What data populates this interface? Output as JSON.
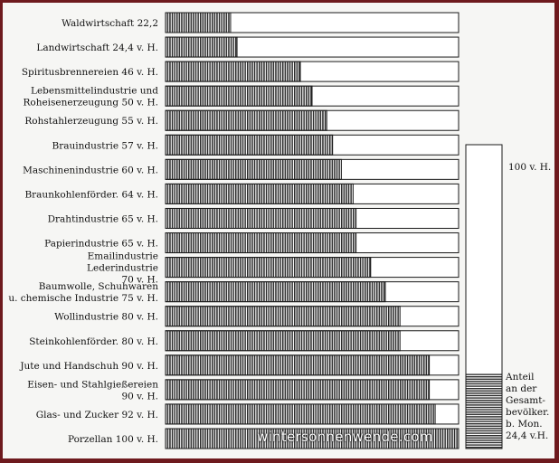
{
  "chart_data": {
    "type": "bar",
    "orientation": "horizontal",
    "categories": [
      [
        "Waldwirtschaft 22,2"
      ],
      [
        "Landwirtschaft 24,4 v. H."
      ],
      [
        "Spiritusbrennereien 46 v. H."
      ],
      [
        "Lebensmittelindustrie und",
        "Roheisenerzeugung 50 v. H."
      ],
      [
        "Rohstahlerzeugung 55 v. H."
      ],
      [
        "Brauindustrie 57 v. H."
      ],
      [
        "Maschinenindustrie 60 v. H."
      ],
      [
        "Braunkohlenförder. 64 v. H."
      ],
      [
        "Drahtindustrie 65 v. H."
      ],
      [
        "Papierindustrie 65 v. H."
      ],
      [
        "Emailindustrie",
        "Lederindustrie",
        "70 v. H."
      ],
      [
        "Baumwolle, Schuhwaren",
        "u. chemische Industrie 75 v. H."
      ],
      [
        "Wollindustrie 80 v. H."
      ],
      [
        "Steinkohlenförder. 80 v. H."
      ],
      [
        "Jute und Handschuh 90 v. H."
      ],
      [
        "Eisen- und Stahlgießereien",
        "90 v. H."
      ],
      [
        "Glas- und Zucker 92 v. H."
      ],
      [
        "Porzellan 100 v. H."
      ]
    ],
    "values": [
      22.2,
      24.4,
      46,
      50,
      55,
      57,
      60,
      64,
      65,
      65,
      70,
      75,
      80,
      80,
      90,
      90,
      92,
      100
    ],
    "xlim": [
      0,
      100
    ],
    "comparison": {
      "top_label": "100 v. H.",
      "caption_lines": [
        "Anteil",
        "an der",
        "Gesamt-",
        "bevölker.",
        "b. Mon.",
        "24,4 v.H."
      ],
      "value": 24.4,
      "max": 100
    },
    "watermark": "wintersonnenwende.com"
  }
}
